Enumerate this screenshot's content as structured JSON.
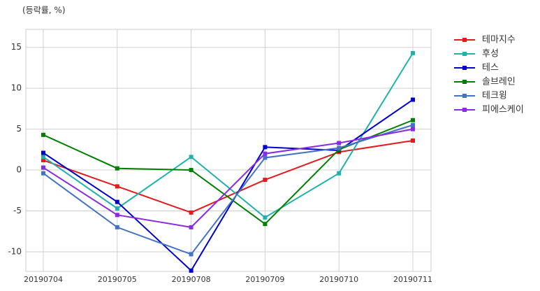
{
  "chart_data": {
    "type": "line",
    "y_label": "(등락률, %)",
    "categories": [
      "20190704",
      "20190705",
      "20190708",
      "20190709",
      "20190710",
      "20190711"
    ],
    "series": [
      {
        "name": "테마지수",
        "color": "#e41a1c",
        "values": [
          1.2,
          -2.0,
          -5.2,
          -1.2,
          2.2,
          3.6
        ]
      },
      {
        "name": "후성",
        "color": "#20b2aa",
        "values": [
          1.6,
          -4.7,
          1.6,
          -5.8,
          -0.4,
          14.3
        ]
      },
      {
        "name": "테스",
        "color": "#0000cd",
        "values": [
          2.1,
          -3.9,
          -12.3,
          2.8,
          2.4,
          8.6
        ]
      },
      {
        "name": "솔브레인",
        "color": "#008000",
        "values": [
          4.3,
          0.2,
          0.0,
          -6.6,
          2.5,
          6.1
        ]
      },
      {
        "name": "테크윙",
        "color": "#4472c4",
        "values": [
          -0.4,
          -7.0,
          -10.3,
          1.5,
          2.7,
          5.5
        ]
      },
      {
        "name": "피에스케이",
        "color": "#8a2be2",
        "values": [
          0.3,
          -5.5,
          -7.0,
          2.0,
          3.3,
          5.0
        ]
      }
    ],
    "ylim": [
      -12.4,
      17.2
    ],
    "yticks": [
      -10,
      -5,
      0,
      5,
      10,
      15
    ],
    "grid": true,
    "legend": "outside-right"
  }
}
